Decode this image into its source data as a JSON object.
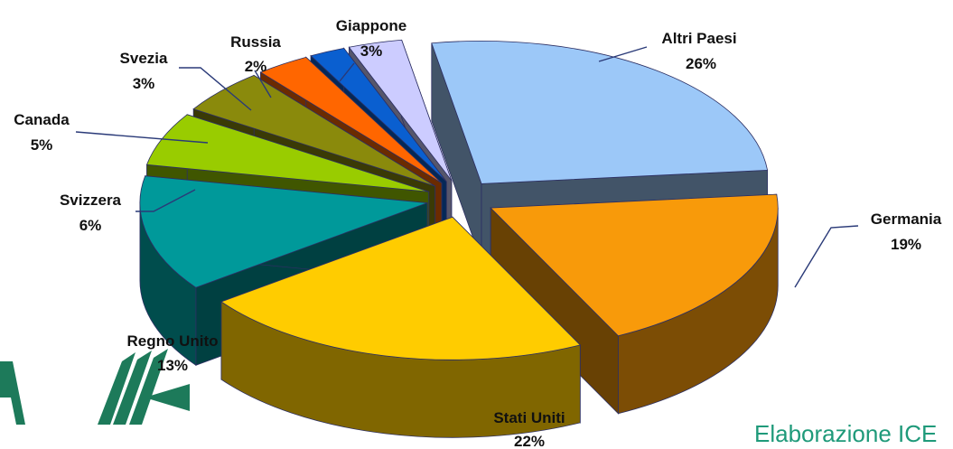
{
  "chart_data": {
    "type": "pie",
    "title": "",
    "categories": [
      "Altri Paesi",
      "Germania",
      "Stati Uniti",
      "Regno Unito",
      "Svizzera",
      "Canada",
      "Svezia",
      "Russia",
      "Giappone"
    ],
    "values": [
      26,
      19,
      22,
      13,
      6,
      5,
      3,
      2,
      3
    ],
    "value_labels": [
      "26%",
      "19%",
      "22%",
      "13%",
      "6%",
      "5%",
      "3%",
      "2%",
      "3%"
    ],
    "colors": {
      "Altri Paesi": "#9cc8f8",
      "Germania": "#f89a0a",
      "Stati Uniti": "#ffcc00",
      "Regno Unito": "#00999a",
      "Svizzera": "#99cc00",
      "Canada": "#8a8a0c",
      "Svezia": "#ff6600",
      "Russia": "#0a5fd0",
      "Giappone": "#ccccff"
    },
    "style": "3d-exploded"
  },
  "footer": {
    "text": "Elaborazione ICE"
  },
  "logo_icon": "chevron-logo-icon"
}
